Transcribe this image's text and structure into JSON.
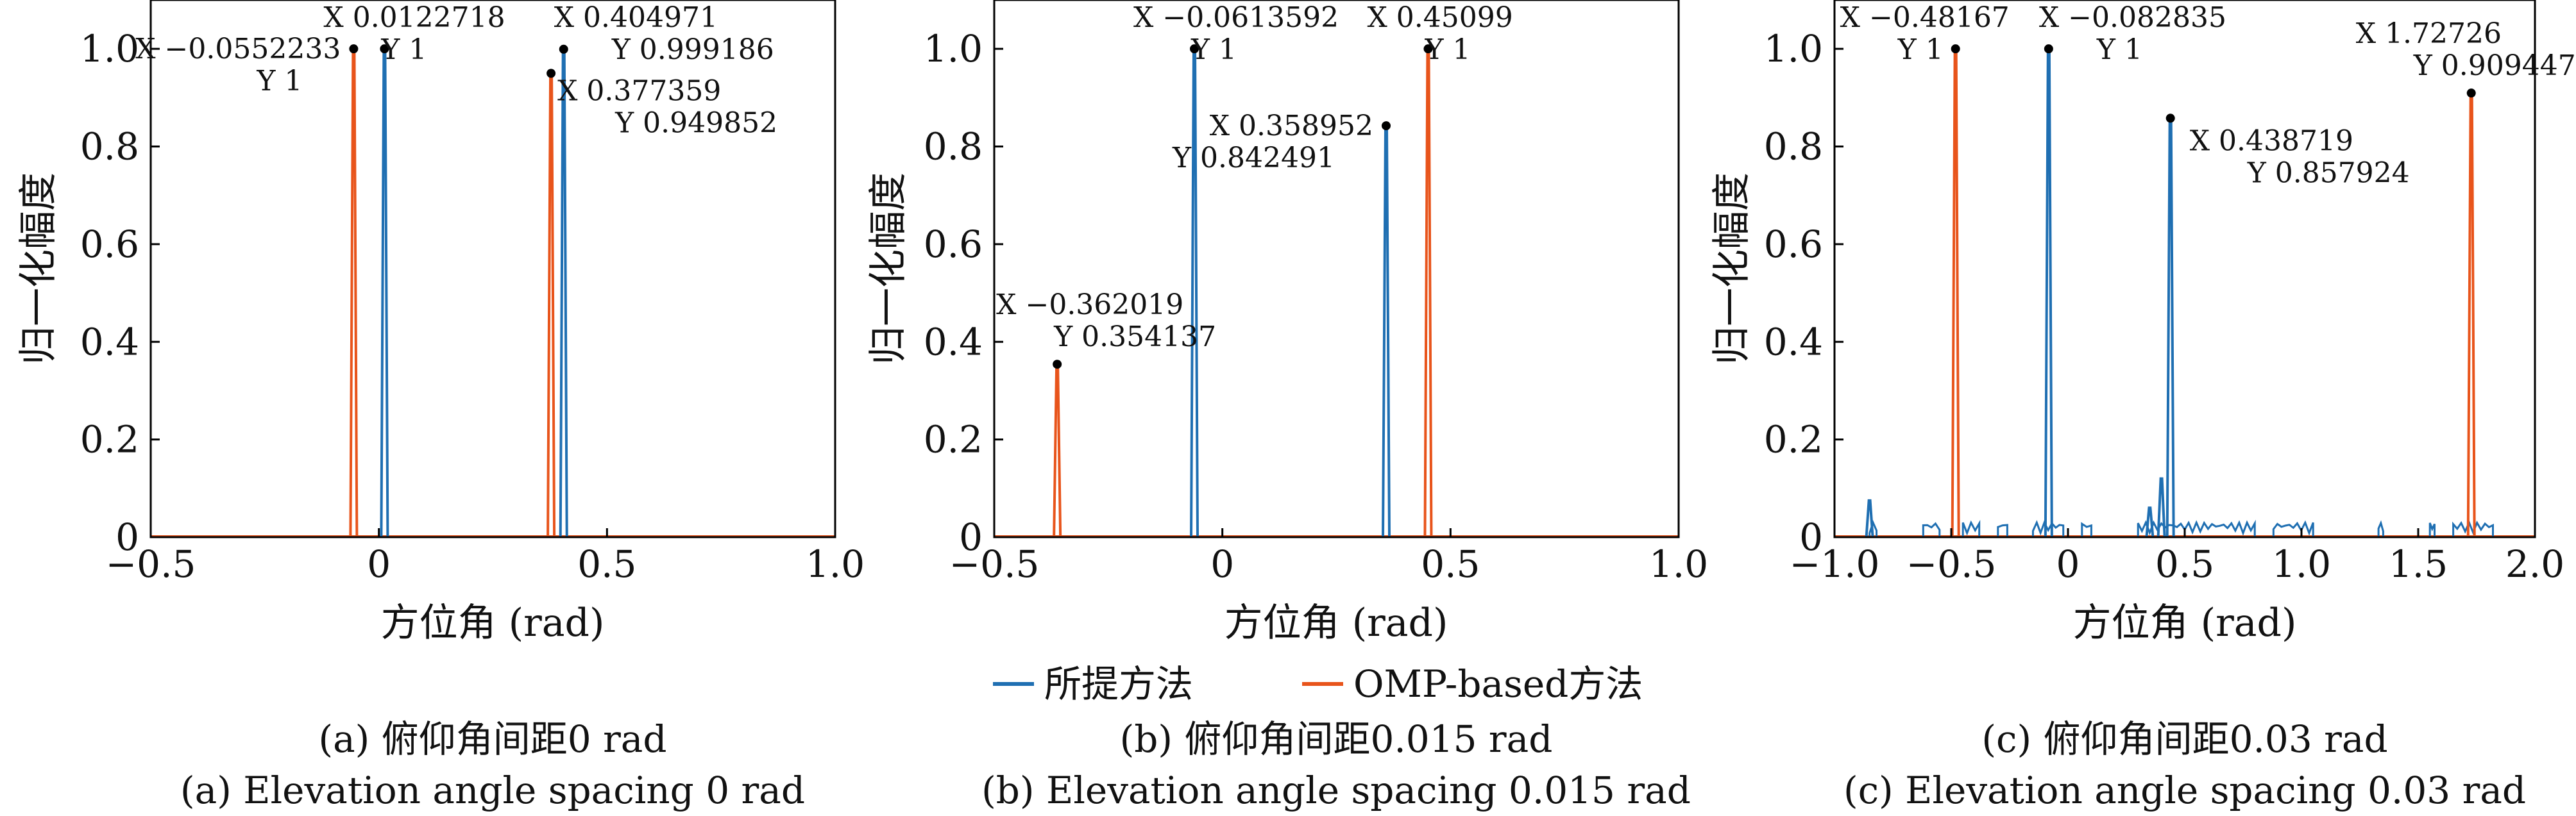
{
  "chart_data": [
    {
      "type": "line",
      "caption_cn": "(a) 俯仰角间距0 rad",
      "caption_en": "(a) Elevation angle spacing 0 rad",
      "xlabel": "方位角 (rad)",
      "ylabel": "归一化幅度",
      "xlim": [
        -0.5,
        1.0
      ],
      "ylim": [
        0,
        1.1
      ],
      "xticks": [
        -0.5,
        0,
        0.5,
        1.0
      ],
      "xtick_labels": [
        "−0.5",
        "0",
        "0.5",
        "1.0"
      ],
      "yticks": [
        0,
        0.2,
        0.4,
        0.6,
        0.8,
        1.0
      ],
      "ytick_labels": [
        "0",
        "0.2",
        "0.4",
        "0.6",
        "0.8",
        "1.0"
      ],
      "grid": false,
      "series": [
        {
          "color": "#1f6fb2",
          "peaks": [
            {
              "x": 0.0122718,
              "y": 1.0
            },
            {
              "x": 0.404971,
              "y": 0.999186
            }
          ],
          "floor": []
        },
        {
          "color": "#e8541b",
          "peaks": [
            {
              "x": -0.0552233,
              "y": 1.0
            },
            {
              "x": 0.377359,
              "y": 0.949852
            }
          ],
          "floor": []
        }
      ],
      "annotations": [
        {
          "x_text": "X −0.0552233",
          "y_text": "Y 1",
          "x": -0.0552233,
          "y": 1.0,
          "anchor": "left"
        },
        {
          "x_text": "X 0.0122718",
          "y_text": "Y 1",
          "x": 0.0122718,
          "y": 1.0,
          "anchor": "above"
        },
        {
          "x_text": "X 0.377359",
          "y_text": "Y 0.949852",
          "x": 0.377359,
          "y": 0.949852,
          "anchor": "below-left"
        },
        {
          "x_text": "X 0.404971",
          "y_text": "Y 0.999186",
          "x": 0.404971,
          "y": 0.999186,
          "anchor": "above-right"
        }
      ]
    },
    {
      "type": "line",
      "caption_cn": "(b) 俯仰角间距0.015 rad",
      "caption_en": "(b) Elevation angle spacing 0.015 rad",
      "xlabel": "方位角 (rad)",
      "ylabel": "归一化幅度",
      "xlim": [
        -0.5,
        1.0
      ],
      "ylim": [
        0,
        1.1
      ],
      "xticks": [
        -0.5,
        0,
        0.5,
        1.0
      ],
      "xtick_labels": [
        "−0.5",
        "0",
        "0.5",
        "1.0"
      ],
      "yticks": [
        0,
        0.2,
        0.4,
        0.6,
        0.8,
        1.0
      ],
      "ytick_labels": [
        "0",
        "0.2",
        "0.4",
        "0.6",
        "0.8",
        "1.0"
      ],
      "grid": false,
      "series": [
        {
          "color": "#1f6fb2",
          "peaks": [
            {
              "x": -0.0613592,
              "y": 1.0
            },
            {
              "x": 0.358952,
              "y": 0.842491
            }
          ],
          "floor": []
        },
        {
          "color": "#e8541b",
          "peaks": [
            {
              "x": -0.362019,
              "y": 0.354137
            },
            {
              "x": 0.45099,
              "y": 1.0
            }
          ],
          "floor": []
        }
      ],
      "annotations": [
        {
          "x_text": "X −0.362019",
          "y_text": "Y 0.354137",
          "x": -0.362019,
          "y": 0.354137,
          "anchor": "above"
        },
        {
          "x_text": "X −0.0613592",
          "y_text": "Y 1",
          "x": -0.0613592,
          "y": 1.0,
          "anchor": "above"
        },
        {
          "x_text": "X 0.358952",
          "y_text": "Y 0.842491",
          "x": 0.358952,
          "y": 0.842491,
          "anchor": "left"
        },
        {
          "x_text": "X 0.45099",
          "y_text": "Y 1",
          "x": 0.45099,
          "y": 1.0,
          "anchor": "above"
        }
      ]
    },
    {
      "type": "line",
      "caption_cn": "(c) 俯仰角间距0.03 rad",
      "caption_en": "(c) Elevation angle spacing 0.03 rad",
      "xlabel": "方位角 (rad)",
      "ylabel": "归一化幅度",
      "xlim": [
        -1.0,
        2.0
      ],
      "ylim": [
        0,
        1.1
      ],
      "xticks": [
        -1.0,
        -0.5,
        0,
        0.5,
        1.0,
        1.5,
        2.0
      ],
      "xtick_labels": [
        "−1.0",
        "−0.5",
        "0",
        "0.5",
        "1.0",
        "1.5",
        "2.0"
      ],
      "yticks": [
        0,
        0.2,
        0.4,
        0.6,
        0.8,
        1.0
      ],
      "ytick_labels": [
        "0",
        "0.2",
        "0.4",
        "0.6",
        "0.8",
        "1.0"
      ],
      "grid": false,
      "series": [
        {
          "color": "#1f6fb2",
          "peaks": [
            {
              "x": -0.082835,
              "y": 1.0
            },
            {
              "x": 0.438719,
              "y": 0.857924
            },
            {
              "x": -0.85,
              "y": 0.075
            },
            {
              "x": 0.4,
              "y": 0.12
            },
            {
              "x": 0.35,
              "y": 0.06
            }
          ],
          "floor": [
            [
              -0.85,
              -0.82
            ],
            [
              -0.62,
              -0.55
            ],
            [
              -0.45,
              -0.38
            ],
            [
              -0.3,
              -0.26
            ],
            [
              -0.15,
              -0.02
            ],
            [
              0.06,
              0.1
            ],
            [
              0.3,
              0.8
            ],
            [
              0.88,
              1.05
            ],
            [
              1.33,
              1.35
            ],
            [
              1.55,
              1.57
            ],
            [
              1.65,
              1.82
            ]
          ]
        },
        {
          "color": "#e8541b",
          "peaks": [
            {
              "x": -0.48167,
              "y": 1.0
            },
            {
              "x": 1.72726,
              "y": 0.909447
            }
          ],
          "floor": []
        }
      ],
      "annotations": [
        {
          "x_text": "X −0.48167",
          "y_text": "Y 1",
          "x": -0.48167,
          "y": 1.0,
          "anchor": "above-left"
        },
        {
          "x_text": "X −0.082835",
          "y_text": "Y 1",
          "x": -0.082835,
          "y": 1.0,
          "anchor": "above-right"
        },
        {
          "x_text": "X 0.438719",
          "y_text": "Y 0.857924",
          "x": 0.438719,
          "y": 0.857924,
          "anchor": "right"
        },
        {
          "x_text": "X 1.72726",
          "y_text": "Y 0.909447",
          "x": 1.72726,
          "y": 0.909447,
          "anchor": "above-left"
        }
      ]
    }
  ],
  "legend": {
    "items": [
      {
        "label": "所提方法",
        "color": "#1f6fb2"
      },
      {
        "label": "OMP-based方法",
        "color": "#e8541b"
      }
    ],
    "placement": "bottom-center"
  }
}
